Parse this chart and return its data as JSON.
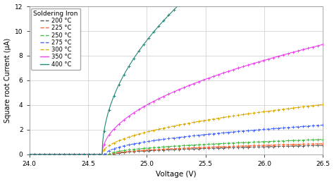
{
  "title": "",
  "xlabel": "Voltage (V)",
  "ylabel": "Square root Current (µA)",
  "xlim": [
    24,
    26.5
  ],
  "ylim": [
    0,
    12
  ],
  "yticks": [
    0,
    2,
    4,
    6,
    8,
    10,
    12
  ],
  "xticks": [
    24,
    24.5,
    25,
    25.5,
    26,
    26.5
  ],
  "legend_title": "Soldering Iron",
  "series": [
    {
      "label": "200 °C",
      "color": "#555555",
      "vth": 24.72,
      "slope": 0.55,
      "power": 0.5,
      "style": "dashed"
    },
    {
      "label": "225 °C",
      "color": "#ff6633",
      "vth": 24.7,
      "slope": 0.65,
      "power": 0.5,
      "style": "dashed"
    },
    {
      "label": "250 °C",
      "color": "#44bb44",
      "vth": 24.68,
      "slope": 0.9,
      "power": 0.5,
      "style": "dashed"
    },
    {
      "label": "275 °C",
      "color": "#4466ff",
      "vth": 24.65,
      "slope": 1.75,
      "power": 0.5,
      "style": "dashed"
    },
    {
      "label": "300 °C",
      "color": "#ddaa00",
      "vth": 24.62,
      "slope": 2.95,
      "power": 0.5,
      "style": "dashed"
    },
    {
      "label": "350 °C",
      "color": "#ee44ee",
      "vth": 24.62,
      "slope": 6.5,
      "power": 0.5,
      "style": "solid"
    },
    {
      "label": "400 °C",
      "color": "#228877",
      "vth": 24.62,
      "slope": 15.0,
      "power": 0.5,
      "style": "solid"
    }
  ],
  "background_color": "#ffffff",
  "grid_color": "#cccccc",
  "marker_count": 60
}
